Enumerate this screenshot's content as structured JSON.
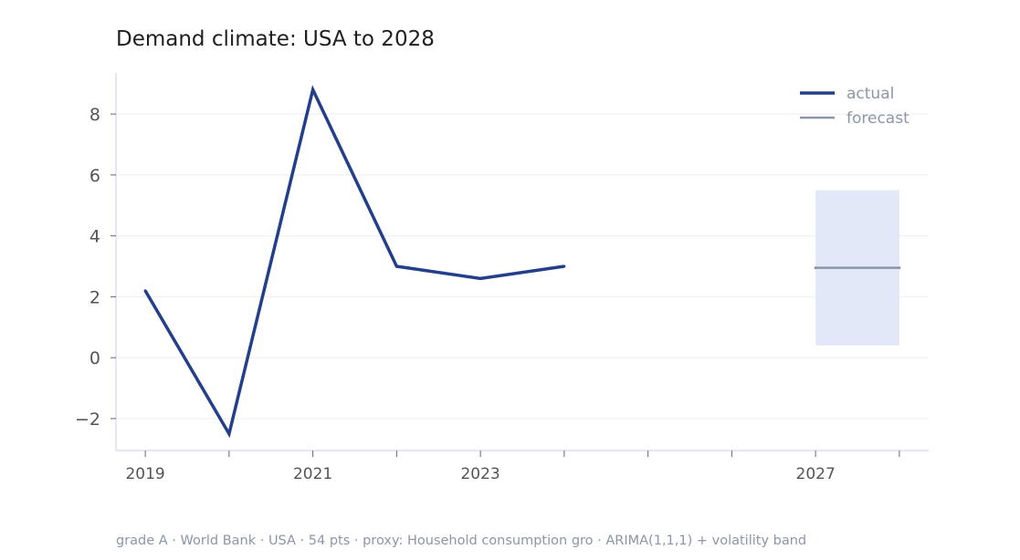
{
  "chart_data": {
    "type": "line",
    "title": "Demand climate: USA to 2028",
    "xlabel": "",
    "ylabel": "",
    "x_range": [
      2018.65,
      2028.35
    ],
    "ylim": [
      -3.05,
      9.35
    ],
    "y_ticks": [
      -2,
      0,
      2,
      4,
      6,
      8
    ],
    "y_tick_labels": [
      "−2",
      "0",
      "2",
      "4",
      "6",
      "8"
    ],
    "x_ticks": [
      2019,
      2020,
      2021,
      2022,
      2023,
      2024,
      2025,
      2026,
      2027,
      2028
    ],
    "x_tick_labels": [
      {
        "x": 2019,
        "label": "2019"
      },
      {
        "x": 2021,
        "label": "2021"
      },
      {
        "x": 2023,
        "label": "2023"
      },
      {
        "x": 2027,
        "label": "2027"
      }
    ],
    "grid": "horizontal",
    "legend": {
      "placement": "top-right",
      "entries": [
        "actual",
        "forecast"
      ]
    },
    "series": [
      {
        "name": "actual",
        "color": "#233f8c",
        "points": [
          {
            "x": 2019,
            "y": 2.2
          },
          {
            "x": 2020,
            "y": -2.5
          },
          {
            "x": 2021,
            "y": 8.8
          },
          {
            "x": 2022,
            "y": 3.0
          },
          {
            "x": 2023,
            "y": 2.6
          },
          {
            "x": 2024,
            "y": 3.0
          }
        ]
      },
      {
        "name": "forecast",
        "color": "#8c96a8",
        "points": [
          {
            "x": 2027,
            "y": 2.95
          },
          {
            "x": 2028,
            "y": 2.95
          }
        ]
      }
    ],
    "band": {
      "x": [
        2027,
        2028
      ],
      "lower": 0.4,
      "upper": 5.5,
      "color": "#e2e8f7"
    },
    "footer": "grade A · World Bank · USA · 54 pts · proxy: Household consumption gro · ARIMA(1,1,1) + volatility band"
  }
}
